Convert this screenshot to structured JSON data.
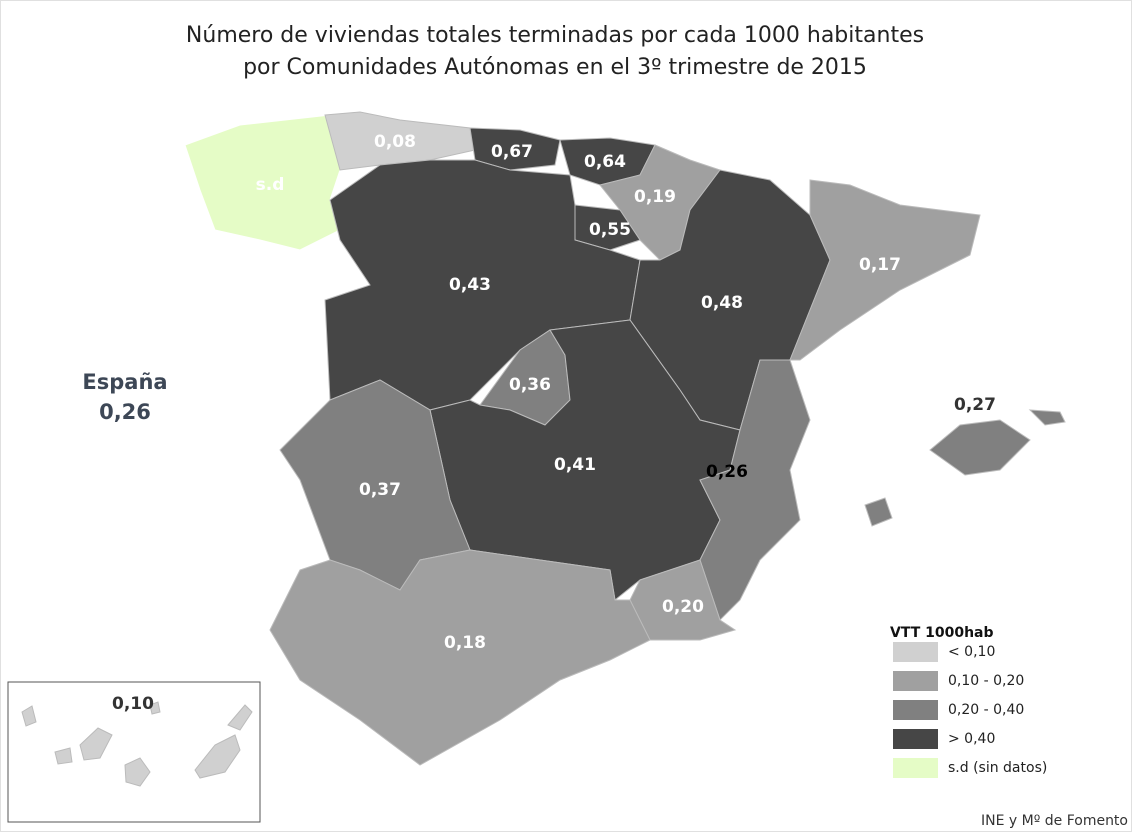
{
  "title": [
    "Número de viviendas totales terminadas por cada 1000 habitantes",
    "por Comunidades Autónomas en el 3º trimestre de 2015"
  ],
  "summary": {
    "name": "España",
    "value": "0,26"
  },
  "regions": [
    {
      "label": "s.d",
      "color": "#e5fcc6"
    },
    {
      "label": "0,08",
      "color": "#d0d0d0"
    },
    {
      "label": "0,67",
      "color": "#464646"
    },
    {
      "label": "0,64",
      "color": "#464646"
    },
    {
      "label": "0,19",
      "color": "#a0a0a0"
    },
    {
      "label": "0,55",
      "color": "#464646"
    },
    {
      "label": "0,43",
      "color": "#464646"
    },
    {
      "label": "0,48",
      "color": "#464646"
    },
    {
      "label": "0,17",
      "color": "#a0a0a0"
    },
    {
      "label": "0,36",
      "color": "#808080"
    },
    {
      "label": "0,41",
      "color": "#464646"
    },
    {
      "label": "0,37",
      "color": "#808080"
    },
    {
      "label": "0,26",
      "color": "#808080"
    },
    {
      "label": "0,20",
      "color": "#a0a0a0"
    },
    {
      "label": "0,18",
      "color": "#a0a0a0"
    },
    {
      "label": "0,27",
      "color": "#808080"
    },
    {
      "label": "0,10",
      "color": "#d0d0d0"
    }
  ],
  "legend": {
    "title": "VTT 1000hab",
    "items": [
      {
        "label": "< 0,10",
        "color": "#d0d0d0"
      },
      {
        "label": "0,10 - 0,20",
        "color": "#a0a0a0"
      },
      {
        "label": "0,20 - 0,40",
        "color": "#808080"
      },
      {
        "label": "> 0,40",
        "color": "#464646"
      },
      {
        "label": "s.d (sin datos)",
        "color": "#e5fcc6"
      }
    ]
  },
  "source": "INE y Mº de Fomento"
}
